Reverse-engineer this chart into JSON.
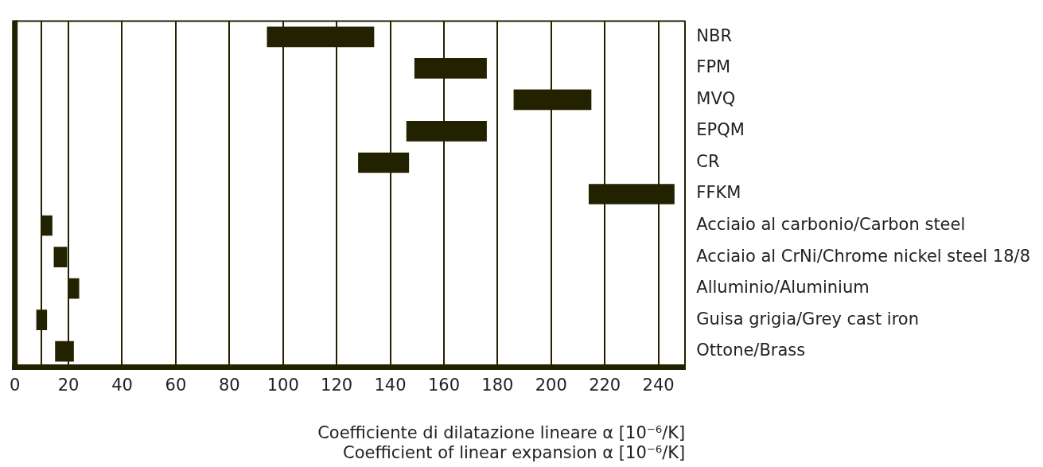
{
  "chart_data": {
    "type": "bar",
    "orientation": "horizontal",
    "color": "#222200",
    "categories": [
      "NBR",
      "FPM",
      "MVQ",
      "EPQM",
      "CR",
      "FFKM",
      "Acciaio al carbonio/Carbon steel",
      "Acciaio al CrNi/Chrome nickel steel 18/8",
      "Alluminio/Aluminium",
      "Guisa grigia/Grey cast iron",
      "Ottone/Brass"
    ],
    "base": [
      94,
      149,
      186,
      146,
      128,
      214,
      10,
      14.5,
      20,
      8,
      15
    ],
    "values": [
      40,
      27,
      29,
      30,
      19,
      32,
      4,
      5,
      4,
      4,
      7
    ],
    "xlim": [
      0,
      250
    ],
    "xticks": [
      0,
      {
        "value": 10,
        "label": null
      },
      20,
      40,
      60,
      80,
      100,
      120,
      140,
      160,
      180,
      200,
      220,
      240
    ],
    "xlabel": "Coefficiente di dilatazione lineare α [10⁻⁶/K]\nCoefficient of linear expansion α [10⁻⁶/K]",
    "grid": "x"
  }
}
